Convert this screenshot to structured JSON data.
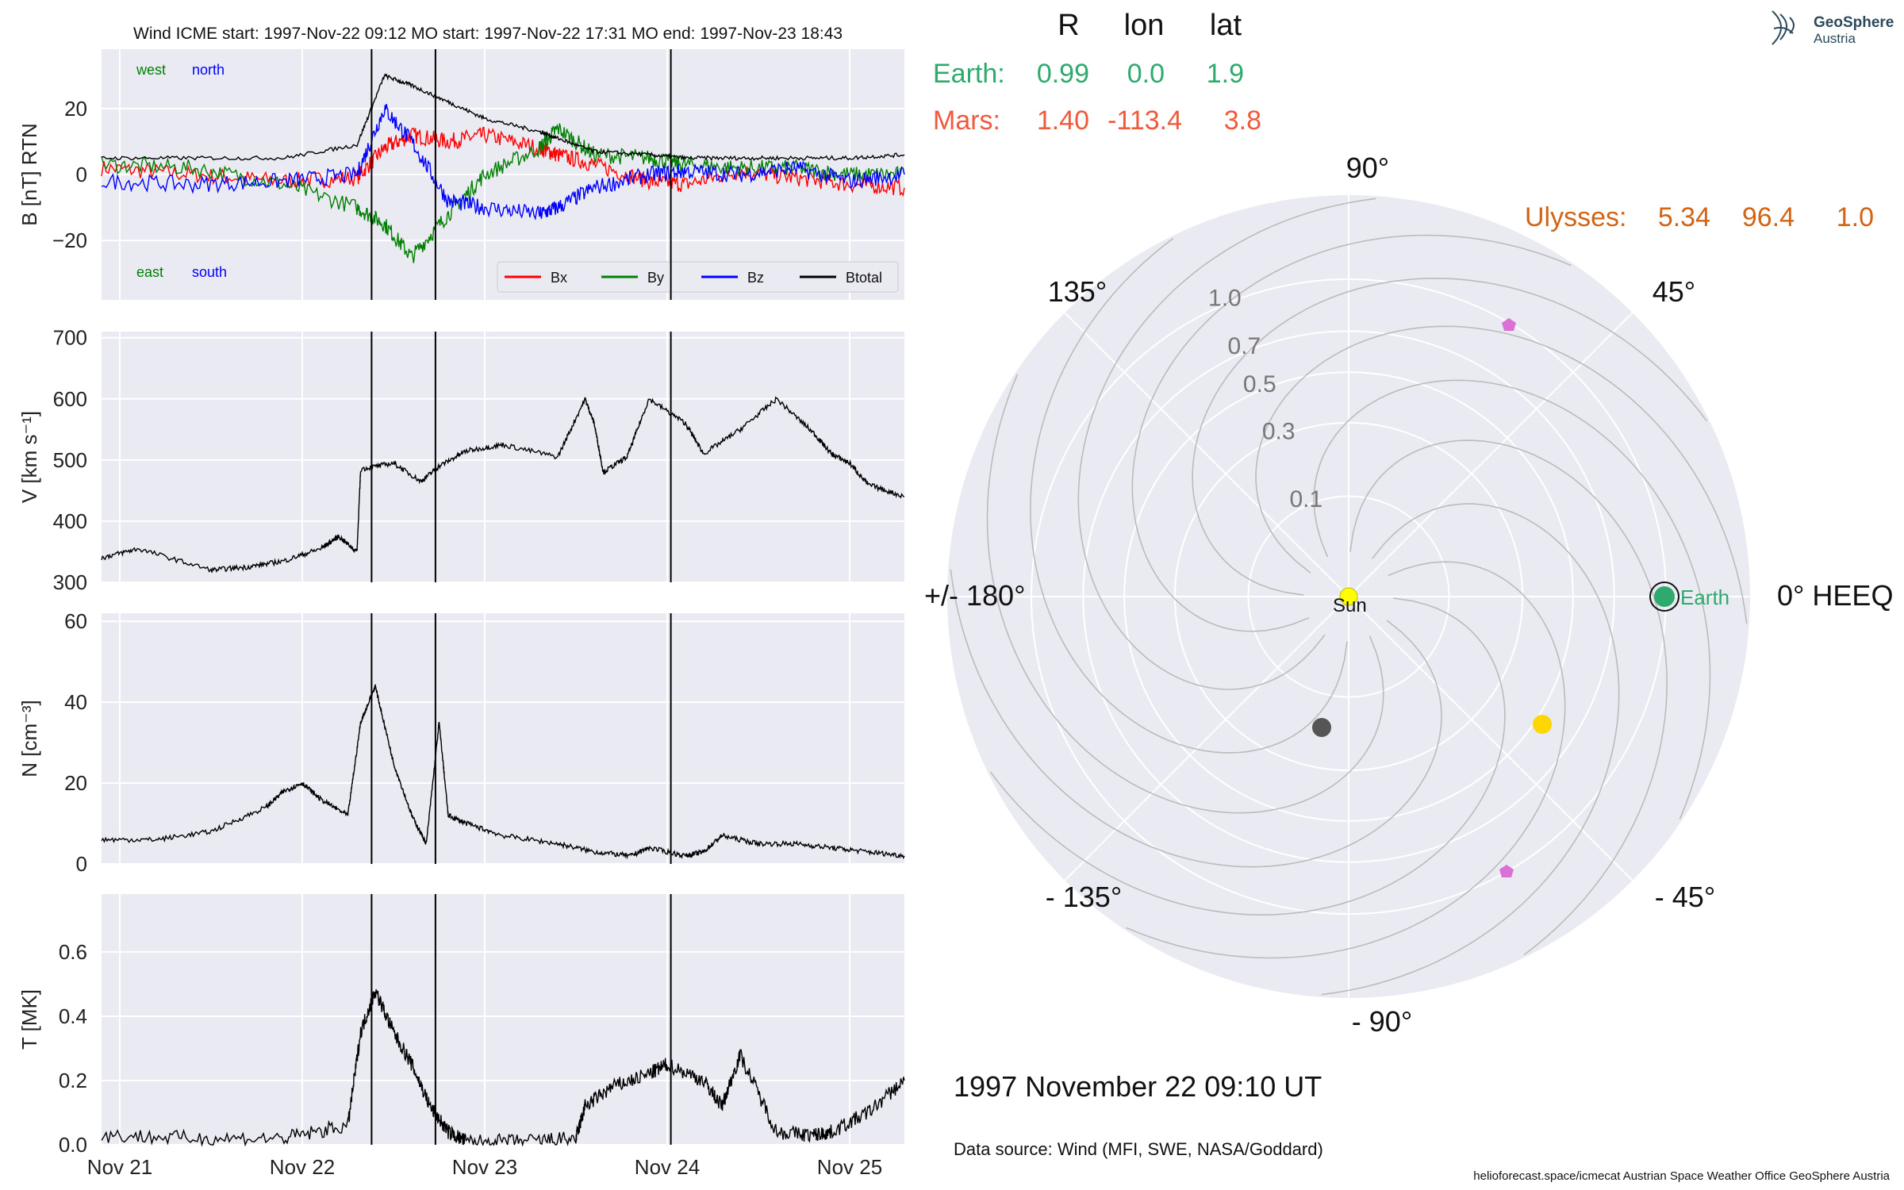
{
  "header": {
    "title": "Wind    ICME start: 1997-Nov-22 09:12   MO start: 1997-Nov-22 17:31   MO end: 1997-Nov-23 18:43"
  },
  "position_table": {
    "headers": [
      "R",
      "lon",
      "lat"
    ],
    "rows": [
      {
        "name": "Earth:",
        "r": "0.99",
        "lon": "0.0",
        "lat": "1.9",
        "color": "#2eaa6e"
      },
      {
        "name": "Mars:",
        "r": "1.40",
        "lon": "-113.4",
        "lat": "3.8",
        "color": "#f05a3c"
      },
      {
        "name": "Ulysses:",
        "r": "5.34",
        "lon": "96.4",
        "lat": "1.0",
        "color": "#d26414"
      }
    ]
  },
  "polar": {
    "angle_labels": [
      "90°",
      "45°",
      "0° HEEQ",
      "- 45°",
      "- 90°",
      "- 135°",
      "+/- 180°",
      "135°"
    ],
    "r_labels": [
      "0.1",
      "0.3",
      "0.5",
      "0.7",
      "1.0"
    ],
    "sun_label": "Sun",
    "earth_label": "Earth",
    "date": "1997 November 22  09:10 UT",
    "source": "Data source: Wind (MFI, SWE, NASA/Goddard)"
  },
  "footer": "helioforecast.space/icmecat   Austrian Space Weather Office   GeoSphere Austria",
  "logo": {
    "line1": "GeoSphere",
    "line2": "Austria"
  },
  "chart_data": [
    {
      "type": "line",
      "ylabel": "B [nT] RTN",
      "ylim": [
        -38,
        38
      ],
      "yticks": [
        "20",
        "0",
        "−20"
      ],
      "corner_labels": [
        "west",
        "north",
        "east",
        "south"
      ],
      "series": [
        {
          "name": "Bx",
          "color": "#ff0000"
        },
        {
          "name": "By",
          "color": "#008000"
        },
        {
          "name": "Bz",
          "color": "#0000ff"
        },
        {
          "name": "Btotal",
          "color": "#000000"
        }
      ],
      "x": [
        0,
        0.5,
        1,
        1.4,
        1.55,
        1.7,
        1.9,
        2.1,
        2.4,
        2.5,
        2.7,
        3.0,
        3.2,
        3.5,
        3.8,
        4.1,
        4.4
      ],
      "Bx": [
        2,
        0,
        -2,
        -1,
        8,
        12,
        10,
        12,
        8,
        6,
        3,
        -2,
        -3,
        1,
        -1,
        -3,
        -4
      ],
      "By": [
        3,
        2,
        -3,
        -10,
        -15,
        -25,
        -12,
        0,
        8,
        14,
        6,
        5,
        3,
        2,
        2,
        0,
        0
      ],
      "Bz": [
        -2,
        -3,
        -2,
        0,
        20,
        10,
        -8,
        -10,
        -12,
        -10,
        -4,
        0,
        1,
        0,
        2,
        -2,
        0
      ],
      "Btotal": [
        5,
        5,
        5,
        9,
        30,
        27,
        22,
        17,
        13,
        11,
        7,
        6,
        5,
        5,
        5,
        5,
        6
      ]
    },
    {
      "type": "line",
      "ylabel": "V [km s⁻¹]",
      "ylim": [
        300,
        710
      ],
      "yticks": [
        "700",
        "600",
        "500",
        "400",
        "300"
      ],
      "x": [
        0,
        0.2,
        0.6,
        0.8,
        1.0,
        1.2,
        1.3,
        1.4,
        1.42,
        1.6,
        1.75,
        1.85,
        2.0,
        2.2,
        2.5,
        2.65,
        2.7,
        2.75,
        2.88,
        3.0,
        3.2,
        3.3,
        3.5,
        3.7,
        3.9,
        4.0,
        4.1,
        4.2,
        4.4
      ],
      "values": [
        340,
        355,
        320,
        325,
        335,
        355,
        375,
        350,
        485,
        495,
        465,
        490,
        515,
        525,
        505,
        600,
        560,
        480,
        505,
        600,
        560,
        510,
        550,
        600,
        545,
        510,
        495,
        460,
        440
      ]
    },
    {
      "type": "line",
      "ylabel": "N [cm⁻³]",
      "ylim": [
        0,
        62
      ],
      "yticks": [
        "60",
        "40",
        "20",
        "0"
      ],
      "x": [
        0,
        0.3,
        0.6,
        0.9,
        1.0,
        1.1,
        1.2,
        1.35,
        1.42,
        1.5,
        1.6,
        1.7,
        1.78,
        1.85,
        1.9,
        2.0,
        2.2,
        2.5,
        2.7,
        2.9,
        3.0,
        3.2,
        3.3,
        3.4,
        3.6,
        3.8,
        4.0,
        4.2,
        4.4
      ],
      "values": [
        6,
        6,
        8,
        14,
        18,
        20,
        16,
        12,
        35,
        44,
        25,
        12,
        5,
        35,
        12,
        10,
        7,
        5,
        3,
        2,
        4,
        2,
        3,
        7,
        5,
        5,
        4,
        3,
        2
      ]
    },
    {
      "type": "line",
      "ylabel": "T [MK]",
      "ylim": [
        0,
        0.78
      ],
      "yticks": [
        "0.6",
        "0.4",
        "0.2",
        "0.0"
      ],
      "x": [
        0,
        0.5,
        1.0,
        1.35,
        1.42,
        1.5,
        1.6,
        1.7,
        1.8,
        1.9,
        2.0,
        2.3,
        2.6,
        2.65,
        2.8,
        3.0,
        3.1,
        3.3,
        3.4,
        3.5,
        3.7,
        3.9,
        4.0,
        4.2,
        4.4
      ],
      "values": [
        0.03,
        0.02,
        0.02,
        0.06,
        0.35,
        0.48,
        0.35,
        0.25,
        0.12,
        0.04,
        0.01,
        0.01,
        0.02,
        0.12,
        0.18,
        0.22,
        0.25,
        0.2,
        0.12,
        0.28,
        0.04,
        0.03,
        0.04,
        0.1,
        0.2
      ]
    }
  ],
  "x_axis": {
    "ticks": [
      "Nov 21",
      "Nov 22",
      "Nov 23",
      "Nov 24",
      "Nov 25"
    ],
    "tick_x": [
      0.1,
      1.1,
      2.1,
      3.1,
      4.1
    ],
    "xlim": [
      0,
      4.4
    ],
    "events": [
      1.48,
      1.83,
      3.12
    ]
  }
}
